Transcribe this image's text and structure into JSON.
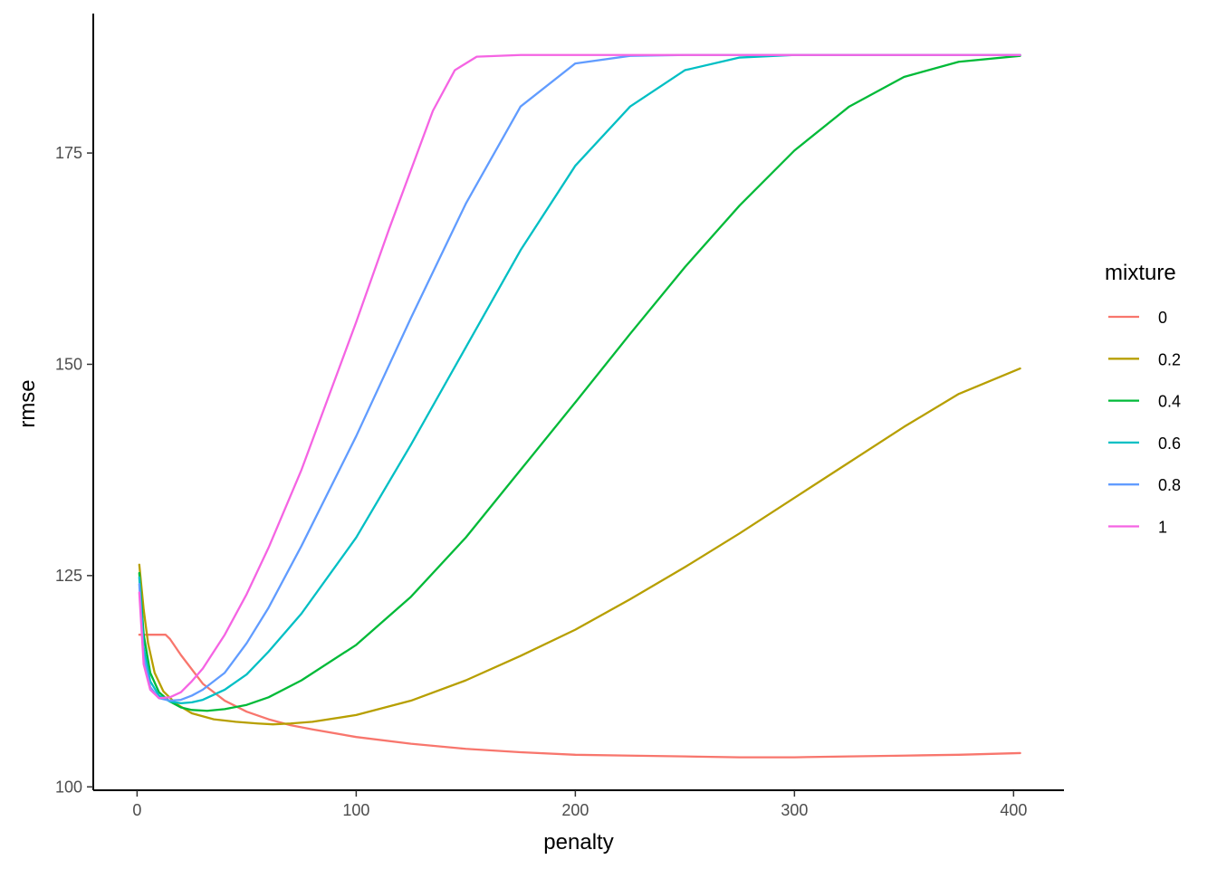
{
  "chart_data": {
    "type": "line",
    "title": "",
    "xlabel": "penalty",
    "ylabel": "rmse",
    "xlim": [
      -20,
      423
    ],
    "ylim": [
      99.6,
      191.5
    ],
    "x_ticks": [
      0,
      100,
      200,
      300,
      400
    ],
    "y_ticks": [
      100,
      125,
      150,
      175
    ],
    "grid": false,
    "legend": {
      "title": "mixture",
      "placement": "right"
    },
    "series": [
      {
        "name": "0",
        "color": "#F8766D",
        "points": [
          [
            1,
            118
          ],
          [
            5,
            118
          ],
          [
            10,
            118
          ],
          [
            13,
            118
          ],
          [
            15,
            117.5
          ],
          [
            20,
            115.6
          ],
          [
            30,
            112.2
          ],
          [
            40,
            110.2
          ],
          [
            50,
            108.9
          ],
          [
            60,
            108
          ],
          [
            70,
            107.3
          ],
          [
            80,
            106.8
          ],
          [
            100,
            105.9
          ],
          [
            125,
            105.1
          ],
          [
            150,
            104.5
          ],
          [
            175,
            104.1
          ],
          [
            200,
            103.8
          ],
          [
            225,
            103.7
          ],
          [
            250,
            103.6
          ],
          [
            275,
            103.5
          ],
          [
            300,
            103.5
          ],
          [
            325,
            103.6
          ],
          [
            350,
            103.7
          ],
          [
            375,
            103.8
          ],
          [
            403,
            104
          ]
        ]
      },
      {
        "name": "0.2",
        "color": "#B79F00",
        "points": [
          [
            1,
            126.3
          ],
          [
            3,
            121
          ],
          [
            5,
            117
          ],
          [
            8,
            113.5
          ],
          [
            12,
            111.3
          ],
          [
            18,
            109.8
          ],
          [
            25,
            108.7
          ],
          [
            35,
            108
          ],
          [
            45,
            107.7
          ],
          [
            55,
            107.5
          ],
          [
            62,
            107.4
          ],
          [
            70,
            107.5
          ],
          [
            80,
            107.7
          ],
          [
            100,
            108.5
          ],
          [
            125,
            110.2
          ],
          [
            150,
            112.6
          ],
          [
            175,
            115.5
          ],
          [
            200,
            118.6
          ],
          [
            225,
            122.2
          ],
          [
            250,
            126
          ],
          [
            275,
            130
          ],
          [
            300,
            134.2
          ],
          [
            325,
            138.4
          ],
          [
            350,
            142.6
          ],
          [
            375,
            146.5
          ],
          [
            403,
            149.5
          ]
        ]
      },
      {
        "name": "0.4",
        "color": "#00BA38",
        "points": [
          [
            1,
            125.3
          ],
          [
            3,
            118
          ],
          [
            6,
            113.5
          ],
          [
            10,
            111.2
          ],
          [
            15,
            110.1
          ],
          [
            20,
            109.4
          ],
          [
            25,
            109.1
          ],
          [
            32,
            109
          ],
          [
            40,
            109.2
          ],
          [
            50,
            109.7
          ],
          [
            60,
            110.6
          ],
          [
            75,
            112.6
          ],
          [
            100,
            116.8
          ],
          [
            125,
            122.5
          ],
          [
            150,
            129.5
          ],
          [
            175,
            137.5
          ],
          [
            200,
            145.5
          ],
          [
            225,
            153.6
          ],
          [
            250,
            161.5
          ],
          [
            275,
            168.8
          ],
          [
            300,
            175.3
          ],
          [
            325,
            180.5
          ],
          [
            350,
            184
          ],
          [
            375,
            185.8
          ],
          [
            403,
            186.5
          ]
        ]
      },
      {
        "name": "0.6",
        "color": "#00BFC4",
        "points": [
          [
            1,
            124.8
          ],
          [
            3,
            116.5
          ],
          [
            6,
            112.5
          ],
          [
            10,
            110.8
          ],
          [
            15,
            110.1
          ],
          [
            20,
            109.9
          ],
          [
            25,
            110
          ],
          [
            30,
            110.3
          ],
          [
            40,
            111.5
          ],
          [
            50,
            113.3
          ],
          [
            60,
            116
          ],
          [
            75,
            120.5
          ],
          [
            100,
            129.5
          ],
          [
            125,
            140.5
          ],
          [
            150,
            152
          ],
          [
            175,
            163.5
          ],
          [
            200,
            173.5
          ],
          [
            225,
            180.5
          ],
          [
            250,
            184.8
          ],
          [
            275,
            186.3
          ],
          [
            300,
            186.6
          ],
          [
            350,
            186.6
          ],
          [
            403,
            186.6
          ]
        ]
      },
      {
        "name": "0.8",
        "color": "#619CFF",
        "points": [
          [
            1,
            124
          ],
          [
            3,
            115.5
          ],
          [
            6,
            111.8
          ],
          [
            10,
            110.5
          ],
          [
            15,
            110.2
          ],
          [
            20,
            110.3
          ],
          [
            25,
            110.8
          ],
          [
            30,
            111.5
          ],
          [
            40,
            113.5
          ],
          [
            50,
            117
          ],
          [
            60,
            121.2
          ],
          [
            75,
            128.5
          ],
          [
            100,
            141.5
          ],
          [
            125,
            155.5
          ],
          [
            150,
            169
          ],
          [
            175,
            180.5
          ],
          [
            200,
            185.6
          ],
          [
            225,
            186.5
          ],
          [
            250,
            186.6
          ],
          [
            300,
            186.6
          ],
          [
            403,
            186.6
          ]
        ]
      },
      {
        "name": "1",
        "color": "#F564E3",
        "points": [
          [
            1,
            123
          ],
          [
            3,
            114.5
          ],
          [
            6,
            111.5
          ],
          [
            10,
            110.5
          ],
          [
            15,
            110.6
          ],
          [
            20,
            111.2
          ],
          [
            25,
            112.5
          ],
          [
            30,
            114
          ],
          [
            40,
            118
          ],
          [
            50,
            122.8
          ],
          [
            60,
            128.3
          ],
          [
            75,
            137.5
          ],
          [
            90,
            148
          ],
          [
            100,
            155
          ],
          [
            115,
            166
          ],
          [
            125,
            173
          ],
          [
            135,
            180
          ],
          [
            145,
            184.8
          ],
          [
            155,
            186.4
          ],
          [
            175,
            186.6
          ],
          [
            403,
            186.6
          ]
        ]
      }
    ]
  }
}
